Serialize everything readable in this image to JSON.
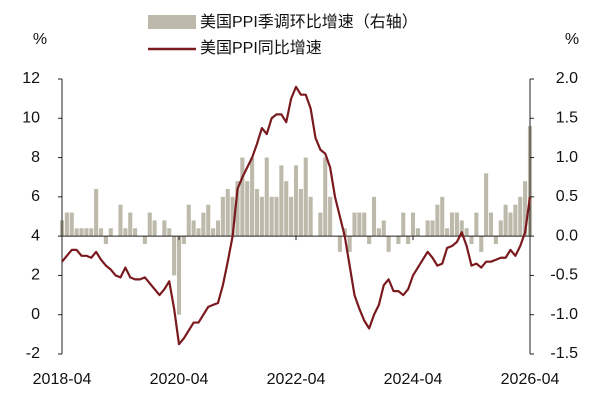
{
  "chart_data": {
    "type": "bar-line",
    "y_unit": "%",
    "y2_unit": "%",
    "categories": [
      "2018-04",
      null,
      null,
      null,
      null,
      null,
      null,
      null,
      null,
      null,
      null,
      null,
      null,
      null,
      null,
      null,
      null,
      null,
      null,
      null,
      null,
      null,
      null,
      null,
      "2020-04",
      null,
      null,
      null,
      null,
      null,
      null,
      null,
      null,
      null,
      null,
      null,
      null,
      null,
      null,
      null,
      null,
      null,
      null,
      null,
      null,
      null,
      null,
      null,
      "2022-04",
      null,
      null,
      null,
      null,
      null,
      null,
      null,
      null,
      null,
      null,
      null,
      null,
      null,
      null,
      null,
      null,
      null,
      null,
      null,
      null,
      null,
      null,
      null,
      "2024-04",
      null,
      null,
      null,
      null,
      null,
      null,
      null,
      null,
      null,
      null,
      null,
      null,
      null,
      null,
      null,
      null,
      null,
      null,
      null,
      null,
      null,
      null,
      null,
      "2026-04"
    ],
    "series": [
      {
        "name": "美国PPI季调环比增速（右轴）",
        "kind": "bar",
        "axis": "y2",
        "color": "#bdb9ab",
        "values": [
          0.2,
          0.3,
          0.3,
          0.1,
          0.1,
          0.1,
          0.1,
          0.6,
          0.1,
          -0.1,
          0.1,
          0.0,
          0.4,
          0.1,
          0.3,
          0.1,
          0.0,
          -0.1,
          0.3,
          0.2,
          0.0,
          0.2,
          0.1,
          -0.5,
          -1.0,
          -0.1,
          0.4,
          0.2,
          0.1,
          0.3,
          0.4,
          0.1,
          0.2,
          0.5,
          0.6,
          0.5,
          0.7,
          1.0,
          0.7,
          1.0,
          0.6,
          0.5,
          1.0,
          0.5,
          0.5,
          0.9,
          0.7,
          0.5,
          0.9,
          0.6,
          1.0,
          0.5,
          0.0,
          0.3,
          1.0,
          0.5,
          0.0,
          -0.2,
          0.1,
          -0.2,
          0.3,
          0.3,
          0.3,
          -0.1,
          0.5,
          0.1,
          0.2,
          -0.2,
          0.0,
          -0.1,
          0.3,
          -0.1,
          0.3,
          0.1,
          0.0,
          0.2,
          0.2,
          0.4,
          0.5,
          0.1,
          0.3,
          0.3,
          0.2,
          0.1,
          -0.1,
          0.3,
          -0.2,
          0.8,
          0.3,
          -0.1,
          0.2,
          0.4,
          0.3,
          0.4,
          0.5,
          0.7,
          1.4
        ]
      },
      {
        "name": "美国PPI同比增速",
        "kind": "line",
        "axis": "y",
        "color": "#7a1a1e",
        "values": [
          2.7,
          3.0,
          3.3,
          3.3,
          3.0,
          3.0,
          2.9,
          3.2,
          2.8,
          2.5,
          2.3,
          2.0,
          1.9,
          2.4,
          1.9,
          1.8,
          1.8,
          1.9,
          1.6,
          1.3,
          1.0,
          1.3,
          1.7,
          0.3,
          -1.5,
          -1.2,
          -0.8,
          -0.4,
          -0.4,
          0.0,
          0.4,
          0.5,
          0.6,
          1.5,
          2.7,
          4.0,
          6.4,
          7.0,
          7.5,
          8.0,
          8.7,
          9.5,
          9.2,
          10.0,
          10.2,
          10.2,
          9.8,
          11.0,
          11.6,
          11.2,
          11.2,
          10.5,
          9.0,
          8.4,
          8.2,
          7.5,
          6.0,
          5.0,
          4.0,
          2.5,
          1.0,
          0.3,
          -0.3,
          -0.7,
          0.0,
          0.5,
          1.5,
          1.8,
          1.2,
          1.2,
          1.0,
          1.3,
          2.0,
          2.4,
          2.8,
          3.2,
          2.9,
          2.5,
          2.6,
          3.4,
          3.5,
          3.7,
          4.2,
          3.5,
          2.5,
          2.6,
          2.4,
          2.7,
          2.7,
          2.8,
          2.9,
          2.9,
          3.3,
          3.0,
          3.5,
          4.2,
          6.0
        ]
      }
    ],
    "ylim": [
      -2,
      12
    ],
    "yticks": [
      -2,
      0,
      2,
      4,
      6,
      8,
      10,
      12
    ],
    "y2lim": [
      -1.5,
      2.0
    ],
    "y2ticks": [
      {
        "value": -1.5,
        "label": "-1.5"
      },
      {
        "value": -1.0,
        "label": "-1.0"
      },
      {
        "value": -0.5,
        "label": "-0.5"
      },
      {
        "value": 0,
        "label": "0.0"
      },
      {
        "value": 0.5,
        "label": "0.5"
      },
      {
        "value": 1.0,
        "label": "1.0"
      },
      {
        "value": 1.5,
        "label": "1.5"
      },
      {
        "value": 2.0,
        "label": "2.0"
      }
    ],
    "legend": "top"
  }
}
